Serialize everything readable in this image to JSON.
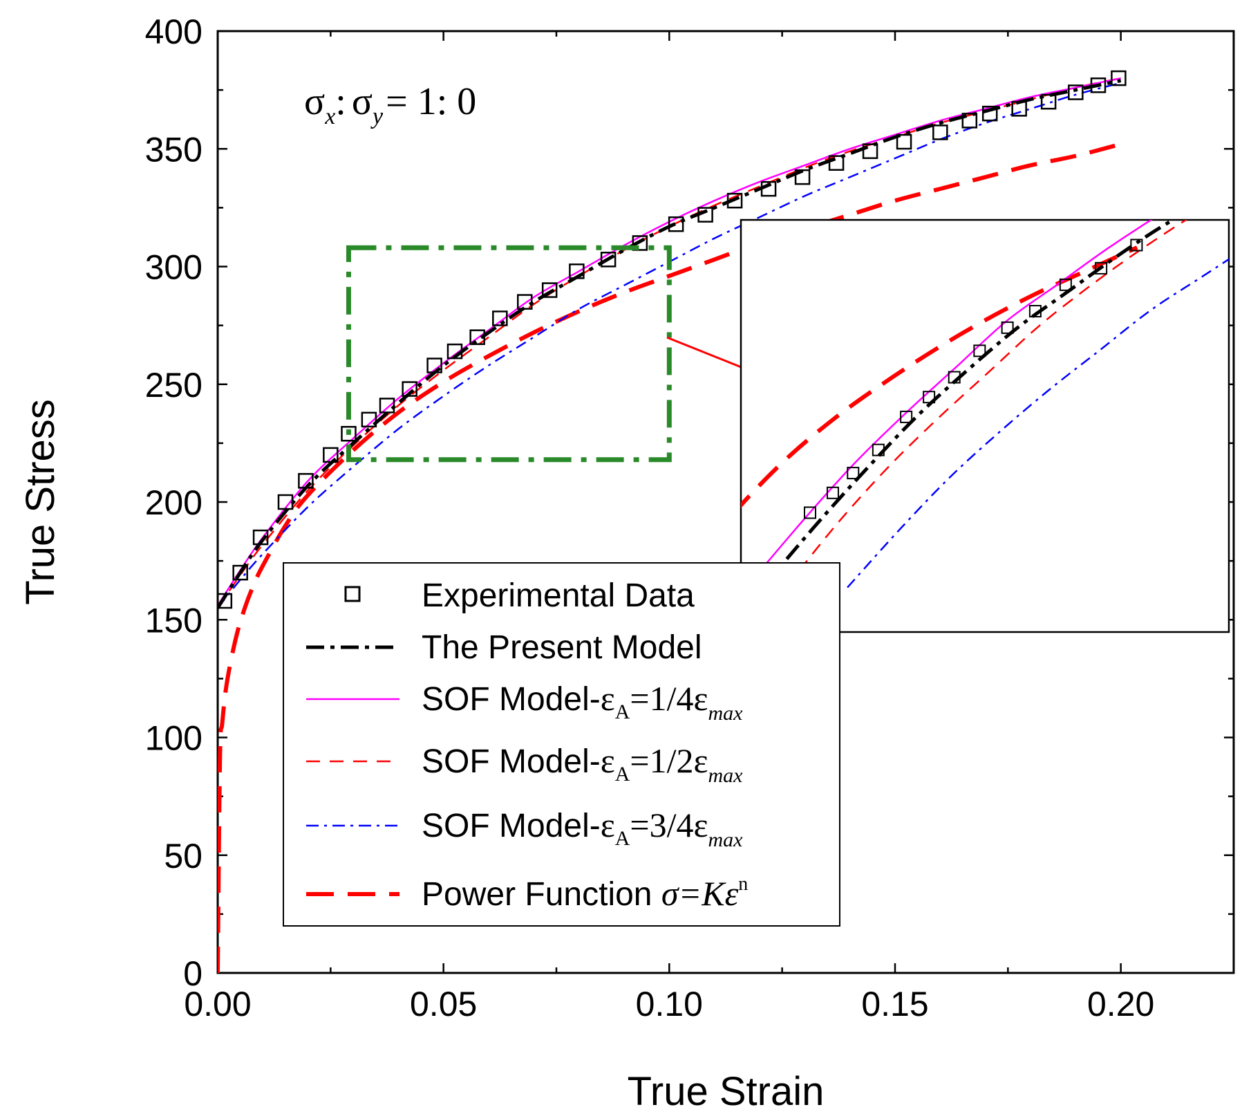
{
  "chart_data": {
    "type": "line",
    "xlabel": "True Strain",
    "ylabel": "True Stress",
    "xlim": [
      0,
      0.225
    ],
    "ylim": [
      0,
      400
    ],
    "xticks": [
      "0.00",
      "0.05",
      "0.10",
      "0.15",
      "0.20"
    ],
    "yticks": [
      "0",
      "50",
      "100",
      "150",
      "200",
      "250",
      "300",
      "350",
      "400"
    ],
    "annotation": {
      "sigma": "σ",
      "x": "x",
      "colon": ":",
      "y": "y",
      "ratio": "= 1: 0"
    },
    "series": [
      {
        "name": "Experimental Data",
        "style": "square-markers",
        "color": "#000000",
        "x": [
          0.0015,
          0.005,
          0.0095,
          0.015,
          0.0195,
          0.025,
          0.029,
          0.0335,
          0.0375,
          0.0425,
          0.048,
          0.0525,
          0.0575,
          0.0625,
          0.068,
          0.0735,
          0.0795,
          0.0865,
          0.0935,
          0.1015,
          0.108,
          0.1145,
          0.122,
          0.1295,
          0.137,
          0.1445,
          0.152,
          0.16,
          0.1665,
          0.171,
          0.1775,
          0.184,
          0.19,
          0.195,
          0.1995
        ],
        "y": [
          158,
          170,
          185,
          200,
          209,
          220,
          229,
          235,
          241,
          248,
          258,
          264,
          270,
          278,
          285,
          290,
          298,
          303,
          310,
          318,
          322,
          328,
          333,
          338,
          344,
          349,
          353,
          357,
          362,
          365,
          367,
          370,
          374,
          377,
          380
        ]
      },
      {
        "name": "The Present Model",
        "style": "dash-dot-thick",
        "color": "#000000",
        "x": [
          0,
          0.005,
          0.01,
          0.02,
          0.03,
          0.04,
          0.05,
          0.06,
          0.07,
          0.08,
          0.09,
          0.1,
          0.11,
          0.12,
          0.13,
          0.14,
          0.15,
          0.16,
          0.17,
          0.18,
          0.19,
          0.2
        ],
        "y": [
          155,
          170,
          184,
          207,
          225,
          242,
          258,
          272,
          285,
          296,
          307,
          317,
          325,
          333,
          341,
          348,
          355,
          361,
          366,
          371,
          375,
          379
        ]
      },
      {
        "name": "SOF Model-εA=1/4εmax",
        "style": "solid",
        "color": "#ff00ff",
        "x": [
          0,
          0.005,
          0.01,
          0.02,
          0.03,
          0.04,
          0.05,
          0.06,
          0.07,
          0.08,
          0.09,
          0.1,
          0.11,
          0.12,
          0.13,
          0.14,
          0.15,
          0.16,
          0.17,
          0.18,
          0.19,
          0.2
        ],
        "y": [
          156,
          171,
          185,
          209,
          227,
          244,
          259,
          273,
          287,
          298,
          309,
          319,
          328,
          336,
          343,
          350,
          356,
          362,
          367,
          372,
          376,
          380
        ]
      },
      {
        "name": "SOF Model-εA=1/2εmax",
        "style": "dashed-thin",
        "color": "#ff0000",
        "x": [
          0,
          0.005,
          0.01,
          0.02,
          0.03,
          0.04,
          0.05,
          0.06,
          0.07,
          0.08,
          0.09,
          0.1,
          0.11,
          0.12,
          0.13,
          0.14,
          0.15,
          0.16,
          0.17,
          0.18,
          0.19,
          0.2
        ],
        "y": [
          155,
          169,
          182,
          205,
          224,
          241,
          256,
          270,
          284,
          296,
          307,
          317,
          326,
          334,
          342,
          349,
          355,
          361,
          366,
          371,
          376,
          380
        ]
      },
      {
        "name": "SOF Model-εA=3/4εmax",
        "style": "dash-dot-thin",
        "color": "#0000ff",
        "x": [
          0,
          0.005,
          0.01,
          0.02,
          0.03,
          0.04,
          0.05,
          0.06,
          0.07,
          0.08,
          0.09,
          0.1,
          0.11,
          0.12,
          0.13,
          0.14,
          0.15,
          0.16,
          0.17,
          0.18,
          0.19,
          0.2
        ],
        "y": [
          155,
          167,
          178,
          198,
          215,
          231,
          245,
          258,
          270,
          282,
          292,
          302,
          312,
          321,
          330,
          338,
          346,
          354,
          361,
          367,
          373,
          378
        ]
      },
      {
        "name": "Power Function σ=Kε^n",
        "style": "dashed-thick",
        "color": "#ff0000",
        "x": [
          0,
          0.0005,
          0.001,
          0.002,
          0.004,
          0.006,
          0.008,
          0.01,
          0.015,
          0.02,
          0.03,
          0.04,
          0.05,
          0.06,
          0.07,
          0.08,
          0.09,
          0.1,
          0.11,
          0.12,
          0.13,
          0.14,
          0.15,
          0.16,
          0.17,
          0.18,
          0.19,
          0.2
        ],
        "y": [
          0,
          92,
          106,
          123,
          142,
          155,
          165,
          173,
          190,
          203,
          222,
          238,
          251,
          262,
          272,
          281,
          289,
          296,
          303,
          310,
          316,
          322,
          328,
          333,
          338,
          343,
          347,
          352
        ]
      }
    ],
    "zoom_box": {
      "x": [
        0.029,
        0.1
      ],
      "y": [
        218,
        308
      ]
    },
    "legend": {
      "placement": "center-left",
      "entries": [
        {
          "label": "Experimental Data"
        },
        {
          "label": "The Present Model"
        },
        {
          "prefix": "SOF Model-",
          "eps": "ε",
          "sub": "A",
          "ratio": "=1/4",
          "max": "max"
        },
        {
          "prefix": "SOF Model-",
          "eps": "ε",
          "sub": "A",
          "ratio": "=1/2",
          "max": "max"
        },
        {
          "prefix": "SOF Model-",
          "eps": "ε",
          "sub": "A",
          "ratio": "=3/4",
          "max": "max"
        },
        {
          "prefix": "Power Function ",
          "formula": "σ=Kε",
          "sup": "n"
        }
      ]
    }
  }
}
